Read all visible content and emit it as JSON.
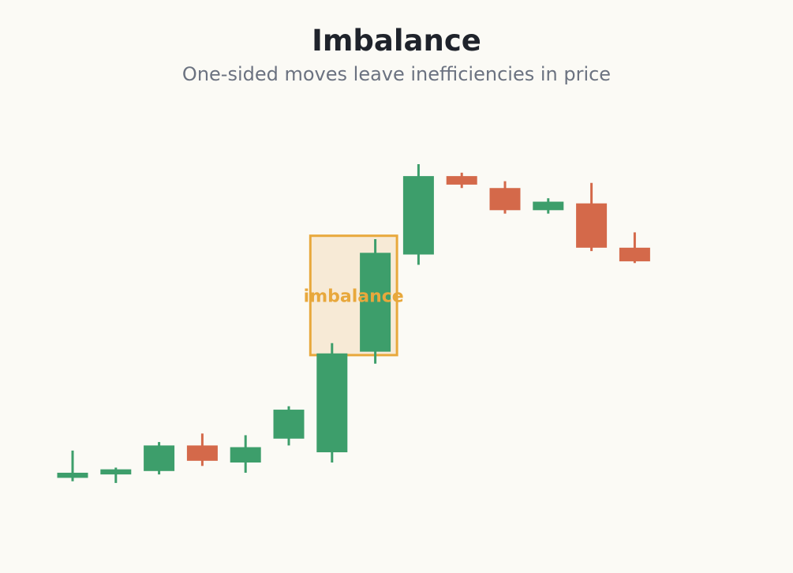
{
  "title": "Imbalance",
  "subtitle": "One-sided moves leave inefficiencies in price",
  "colors": {
    "up": "#3d9e6b",
    "down": "#d4694a",
    "zone_stroke": "#e8a83c",
    "zone_fill": "#f7ead6",
    "zone_text": "#e8a83c"
  },
  "chart_data": {
    "type": "candlestick",
    "ylim": [
      0,
      100
    ],
    "candles": [
      {
        "open": 8.0,
        "high": 16.0,
        "low": 7.0,
        "close": 9.5
      },
      {
        "open": 9.0,
        "high": 11.0,
        "low": 6.5,
        "close": 10.5
      },
      {
        "open": 10.0,
        "high": 18.5,
        "low": 9.0,
        "close": 17.5
      },
      {
        "open": 17.5,
        "high": 21.0,
        "low": 11.5,
        "close": 13.0
      },
      {
        "open": 12.5,
        "high": 20.5,
        "low": 9.5,
        "close": 17.0
      },
      {
        "open": 19.5,
        "high": 29.0,
        "low": 17.5,
        "close": 28.0
      },
      {
        "open": 15.5,
        "high": 47.5,
        "low": 12.5,
        "close": 44.5
      },
      {
        "open": 45.0,
        "high": 78.0,
        "low": 41.5,
        "close": 74.0
      },
      {
        "open": 73.5,
        "high": 100.0,
        "low": 70.5,
        "close": 96.5
      },
      {
        "open": 96.5,
        "high": 97.5,
        "low": 93.0,
        "close": 94.0
      },
      {
        "open": 93.0,
        "high": 95.0,
        "low": 85.5,
        "close": 86.5
      },
      {
        "open": 86.5,
        "high": 90.0,
        "low": 85.5,
        "close": 89.0
      },
      {
        "open": 88.5,
        "high": 94.5,
        "low": 74.5,
        "close": 75.5
      },
      {
        "open": 75.5,
        "high": 80.0,
        "low": 71.0,
        "close": 71.5
      }
    ],
    "annotations": [
      {
        "label": "imbalance",
        "x_start": 6,
        "x_end": 7,
        "y_low": 44.0,
        "y_high": 79.0
      }
    ]
  }
}
